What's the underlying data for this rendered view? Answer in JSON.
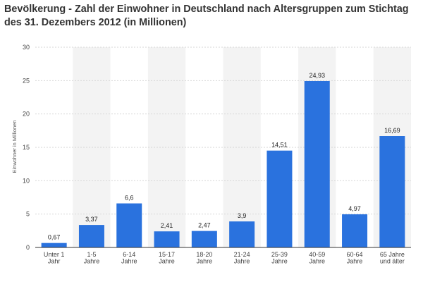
{
  "title": "Bevölkerung - Zahl der Einwohner in Deutschland nach Altersgruppen zum Stichtag des 31. Dezembers 2012 (in Millionen)",
  "chart_data": {
    "type": "bar",
    "title": "Bevölkerung - Zahl der Einwohner in Deutschland nach Altersgruppen zum Stichtag des 31. Dezembers 2012 (in Millionen)",
    "xlabel": "",
    "ylabel": "Einwohner in Millionen",
    "ylim": [
      0,
      30
    ],
    "yticks": [
      "0",
      "5",
      "10",
      "15",
      "20",
      "25",
      "30"
    ],
    "categories": [
      [
        "Unter 1",
        "Jahr"
      ],
      [
        "1-5",
        "Jahre"
      ],
      [
        "6-14",
        "Jahre"
      ],
      [
        "15-17",
        "Jahre"
      ],
      [
        "18-20",
        "Jahre"
      ],
      [
        "21-24",
        "Jahre"
      ],
      [
        "25-39",
        "Jahre"
      ],
      [
        "40-59",
        "Jahre"
      ],
      [
        "60-64",
        "Jahre"
      ],
      [
        "65 Jahre",
        "und älter"
      ]
    ],
    "values": [
      0.67,
      3.37,
      6.6,
      2.41,
      2.47,
      3.9,
      14.51,
      24.93,
      4.97,
      16.69
    ],
    "value_labels": [
      "0,67",
      "3,37",
      "6,6",
      "2,41",
      "2,47",
      "3,9",
      "14,51",
      "24,93",
      "4,97",
      "16,69"
    ],
    "grid": true,
    "bar_color": "#2a72de",
    "band_color": "#f3f3f3",
    "grid_color": "#d6d6d6",
    "axis_color": "#333333"
  }
}
